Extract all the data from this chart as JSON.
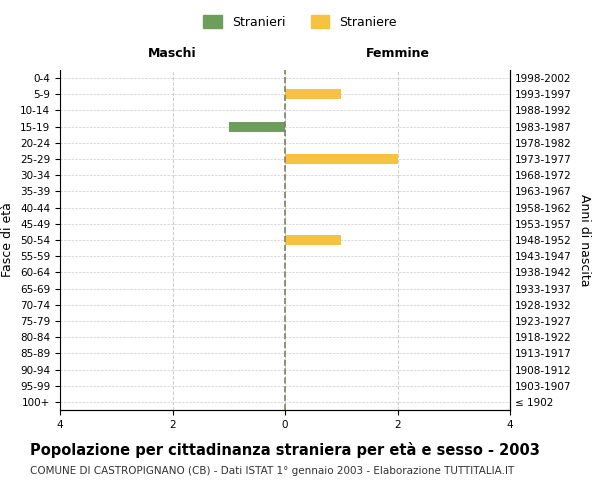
{
  "age_groups": [
    "100+",
    "95-99",
    "90-94",
    "85-89",
    "80-84",
    "75-79",
    "70-74",
    "65-69",
    "60-64",
    "55-59",
    "50-54",
    "45-49",
    "40-44",
    "35-39",
    "30-34",
    "25-29",
    "20-24",
    "15-19",
    "10-14",
    "5-9",
    "0-4"
  ],
  "birth_years": [
    "≤ 1902",
    "1903-1907",
    "1908-1912",
    "1913-1917",
    "1918-1922",
    "1923-1927",
    "1928-1932",
    "1933-1937",
    "1938-1942",
    "1943-1947",
    "1948-1952",
    "1953-1957",
    "1958-1962",
    "1963-1967",
    "1968-1972",
    "1973-1977",
    "1978-1982",
    "1983-1987",
    "1988-1992",
    "1993-1997",
    "1998-2002"
  ],
  "maschi_stranieri": [
    0,
    0,
    0,
    0,
    0,
    0,
    0,
    0,
    0,
    0,
    0,
    0,
    0,
    0,
    0,
    0,
    0,
    1,
    0,
    0,
    0
  ],
  "femmine_straniere": [
    0,
    0,
    0,
    0,
    0,
    0,
    0,
    0,
    0,
    0,
    1,
    0,
    0,
    0,
    0,
    2,
    0,
    0,
    0,
    1,
    0
  ],
  "xlim": 4,
  "color_maschi": "#6d9e5a",
  "color_femmine": "#f5c242",
  "color_zero_line": "#808060",
  "grid_color": "#cccccc",
  "background_color": "#ffffff",
  "title": "Popolazione per cittadinanza straniera per età e sesso - 2003",
  "subtitle": "COMUNE DI CASTROPIGNANO (CB) - Dati ISTAT 1° gennaio 2003 - Elaborazione TUTTITALIA.IT",
  "ylabel_left": "Fasce di età",
  "ylabel_right": "Anni di nascita",
  "xlabel_left": "Maschi",
  "xlabel_right": "Femmine",
  "legend_stranieri": "Stranieri",
  "legend_straniere": "Straniere",
  "title_fontsize": 10.5,
  "subtitle_fontsize": 7.5,
  "tick_fontsize": 7.5,
  "label_fontsize": 9
}
